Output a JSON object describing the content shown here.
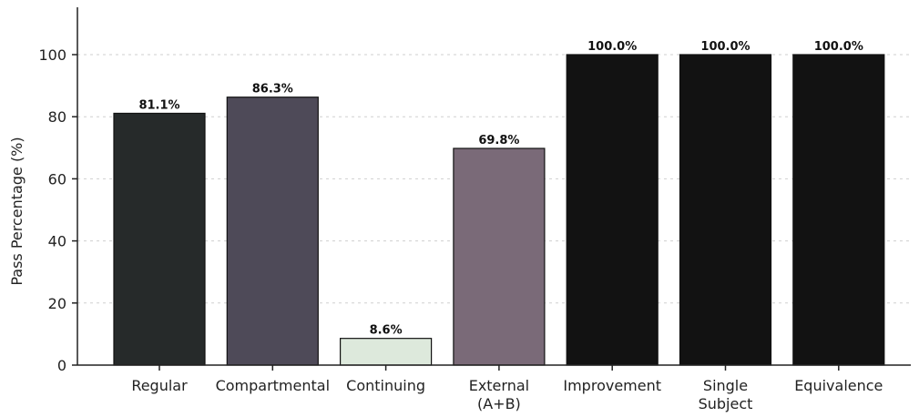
{
  "chart_data": {
    "type": "bar",
    "ylabel": "Pass Percentage (%)",
    "ylim": [
      0,
      115
    ],
    "yticks": [
      0,
      20,
      40,
      60,
      80,
      100
    ],
    "grid": "horizontal dashed, faint",
    "categories": [
      [
        "Regular"
      ],
      [
        "Compartmental"
      ],
      [
        "Continuing"
      ],
      [
        "External",
        "(A+B)"
      ],
      [
        "Improvement"
      ],
      [
        "Single",
        "Subject"
      ],
      [
        "Equivalence"
      ]
    ],
    "values": [
      81.1,
      86.3,
      8.6,
      69.8,
      100.0,
      100.0,
      100.0
    ],
    "value_labels": [
      "81.1%",
      "86.3%",
      "8.6%",
      "69.8%",
      "100.0%",
      "100.0%",
      "100.0%"
    ],
    "colors": [
      "#262a2a",
      "#4e4a58",
      "#dde9dc",
      "#7a6a78",
      "#121212",
      "#121212",
      "#121212"
    ]
  }
}
